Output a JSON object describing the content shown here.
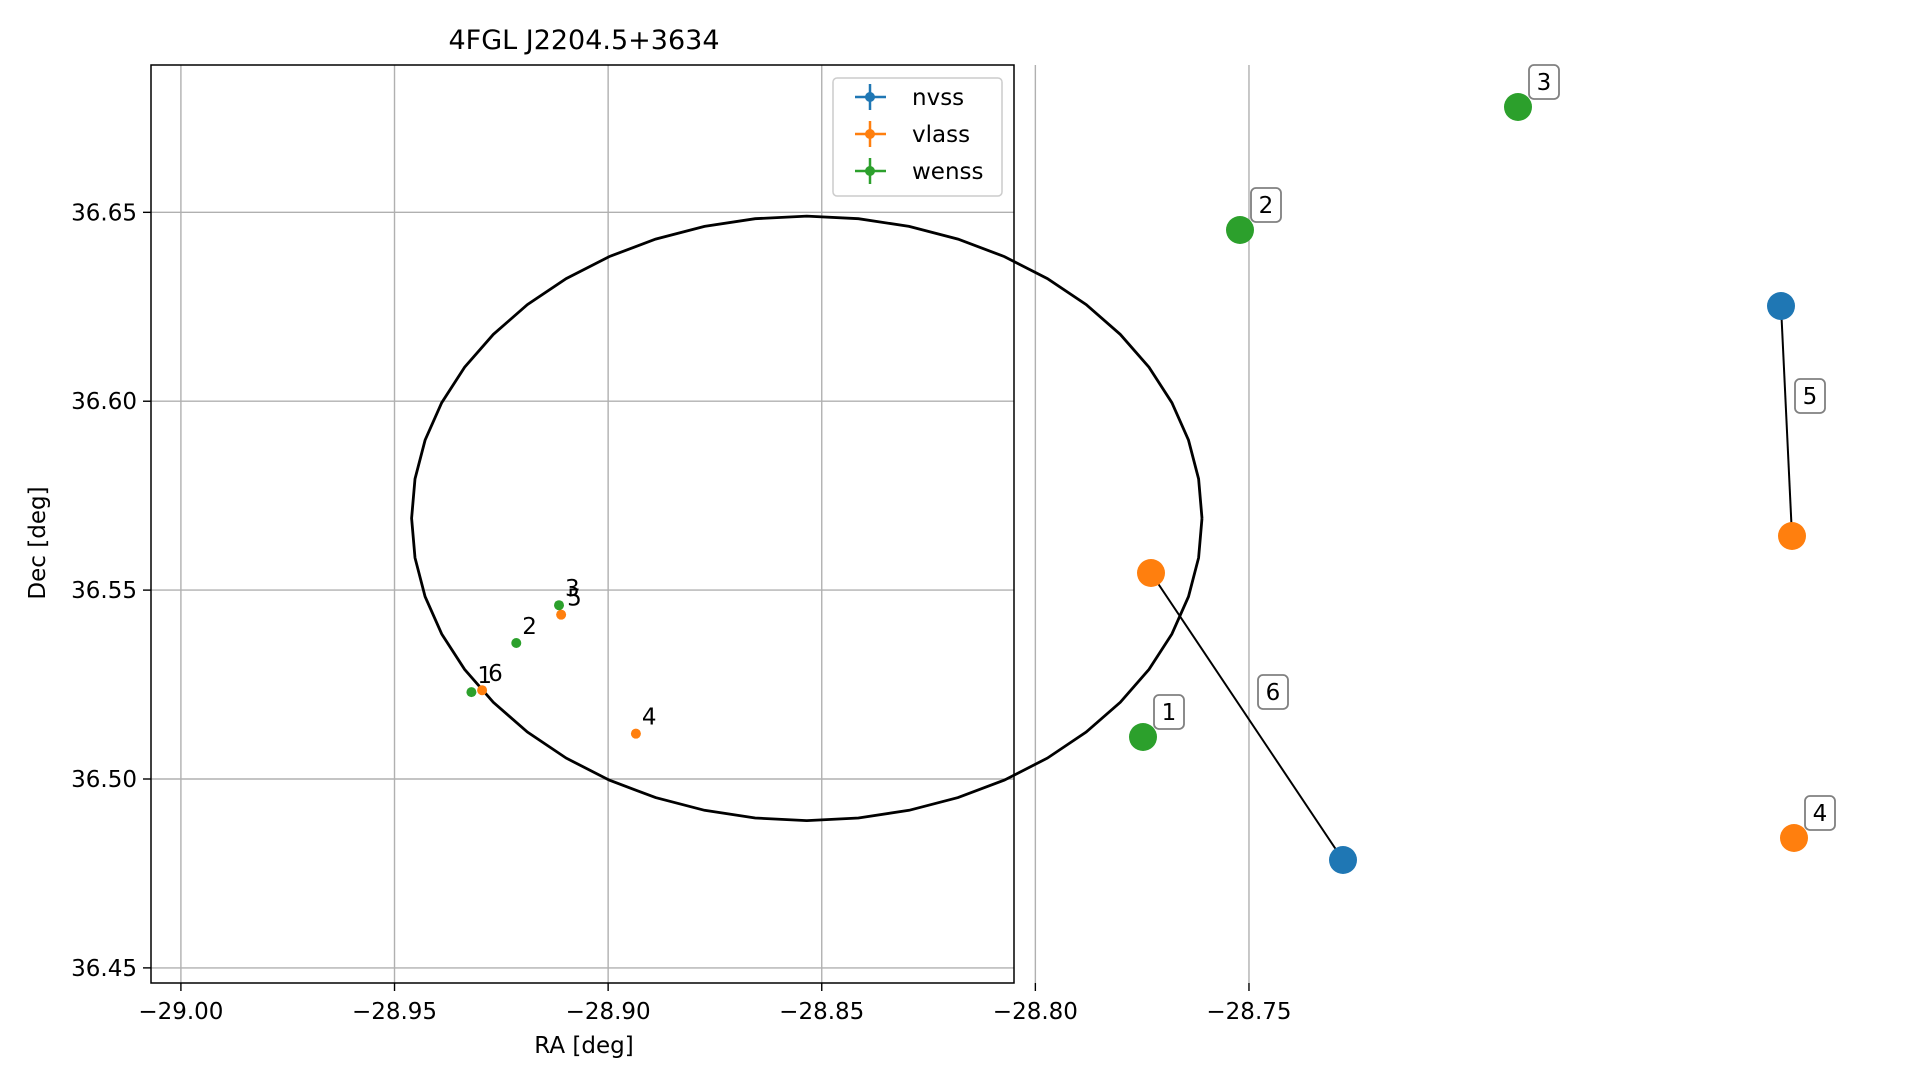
{
  "chart_data": [
    {
      "type": "scatter",
      "title": "4FGL J2204.5+3634",
      "xlabel": "RA [deg]",
      "ylabel": "Dec [deg]",
      "xlim": [
        -29.007,
        -28.805
      ],
      "ylim": [
        36.446,
        36.689
      ],
      "xticks": [
        -29.0,
        -28.95,
        -28.9,
        -28.85,
        -28.8,
        -28.75
      ],
      "xtick_labels": [
        "−29.00",
        "−28.95",
        "−28.90",
        "−28.85",
        "−28.80",
        "−28.75"
      ],
      "yticks": [
        36.45,
        36.5,
        36.55,
        36.6,
        36.65
      ],
      "ytick_labels": [
        "36.45",
        "36.50",
        "36.55",
        "36.60",
        "36.65"
      ],
      "grid": true,
      "legend_position": "top-right",
      "ellipse": {
        "center_ra": -28.8535,
        "center_dec": 36.569,
        "ra_radius": 0.0925,
        "dec_radius": 0.08
      },
      "series": [
        {
          "name": "nvss",
          "color": "#1f77b4",
          "points": []
        },
        {
          "name": "vlass",
          "color": "#ff7f0e",
          "points": [
            {
              "label": "6",
              "ra": -28.9295,
              "dec": 36.5235
            },
            {
              "label": "5",
              "ra": -28.911,
              "dec": 36.5435
            },
            {
              "label": "4",
              "ra": -28.8935,
              "dec": 36.512
            }
          ]
        },
        {
          "name": "wenss",
          "color": "#2ca02c",
          "points": [
            {
              "label": "1",
              "ra": -28.932,
              "dec": 36.523
            },
            {
              "label": "2",
              "ra": -28.9215,
              "dec": 36.536
            },
            {
              "label": "3",
              "ra": -28.9115,
              "dec": 36.546
            }
          ]
        }
      ]
    },
    {
      "type": "network",
      "nodes": [
        {
          "id": "1",
          "survey": "wenss",
          "color": "#2ca02c",
          "labeled": true
        },
        {
          "id": "2",
          "survey": "wenss",
          "color": "#2ca02c",
          "labeled": true
        },
        {
          "id": "3",
          "survey": "wenss",
          "color": "#2ca02c",
          "labeled": true
        },
        {
          "id": "4",
          "survey": "vlass",
          "color": "#ff7f0e",
          "labeled": true
        },
        {
          "id": "5a",
          "survey": "nvss",
          "color": "#1f77b4",
          "labeled": false
        },
        {
          "id": "5b",
          "survey": "vlass",
          "color": "#ff7f0e",
          "labeled": false
        },
        {
          "id": "6a",
          "survey": "vlass",
          "color": "#ff7f0e",
          "labeled": false
        },
        {
          "id": "6b",
          "survey": "nvss",
          "color": "#1f77b4",
          "labeled": false
        }
      ],
      "edges": [
        {
          "label": "5",
          "from": "5a",
          "to": "5b"
        },
        {
          "label": "6",
          "from": "6a",
          "to": "6b"
        }
      ]
    }
  ]
}
